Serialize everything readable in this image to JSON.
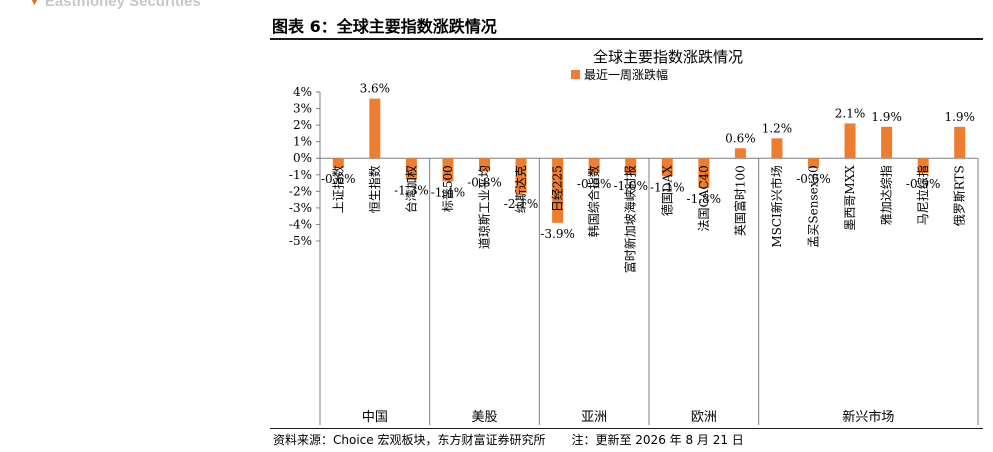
{
  "header": {
    "brand": "Eastmoney Securities",
    "figure_title": "图表 6：全球主要指数涨跌情况"
  },
  "footer": {
    "source": "资料来源：Choice 宏观板块，东方财富证券研究所",
    "note": "注：更新至 2026 年 8 月 21 日"
  },
  "colors": {
    "bar": "#ed7d31",
    "axis": "#7f7f7f"
  },
  "chart_data": {
    "type": "bar",
    "title": "全球主要指数涨跌情况",
    "legend": {
      "label": "最近一周涨跌幅",
      "placement": "top-left"
    },
    "y_ticks": [
      "4%",
      "3%",
      "2%",
      "1%",
      "0%",
      "-1%",
      "-2%",
      "-3%",
      "-4%",
      "-5%"
    ],
    "ylim": [
      -5,
      4
    ],
    "grid": false,
    "categories": [
      "上证指数",
      "恒生指数",
      "台湾加权",
      "标普500",
      "道琼斯工业平均",
      "纳斯达克",
      "日经225",
      "韩国综合指数",
      "富时新加坡海峡时报",
      "德国DAX",
      "法国CAC40",
      "英国富时100",
      "MSCI新兴市场",
      "孟买Sensex30",
      "墨西哥MXX",
      "雅加达综指",
      "马尼拉综指",
      "俄罗斯RTS"
    ],
    "series": [
      {
        "values": [
          -0.6,
          3.6,
          -1.3,
          -1.4,
          -0.8,
          -2.1,
          -3.9,
          -0.9,
          -1.0,
          -1.1,
          -1.8,
          0.6,
          1.2,
          -0.6,
          2.1,
          1.9,
          -0.9,
          1.9
        ],
        "labels": [
          "-0.6%",
          "3.6%",
          "-1.3%",
          "-1.4%",
          "-0.8%",
          "-2.1%",
          "-3.9%",
          "-0.9%",
          "-1.0%",
          "-1.1%",
          "-1.8%",
          "0.6%",
          "1.2%",
          "-0.6%",
          "2.1%",
          "1.9%",
          "-0.9%",
          "1.9%"
        ]
      }
    ],
    "groups": [
      {
        "name": "中国",
        "count": 3
      },
      {
        "name": "美股",
        "count": 3
      },
      {
        "name": "亚洲",
        "count": 3
      },
      {
        "name": "欧洲",
        "count": 3
      },
      {
        "name": "新兴市场",
        "count": 6
      }
    ]
  }
}
